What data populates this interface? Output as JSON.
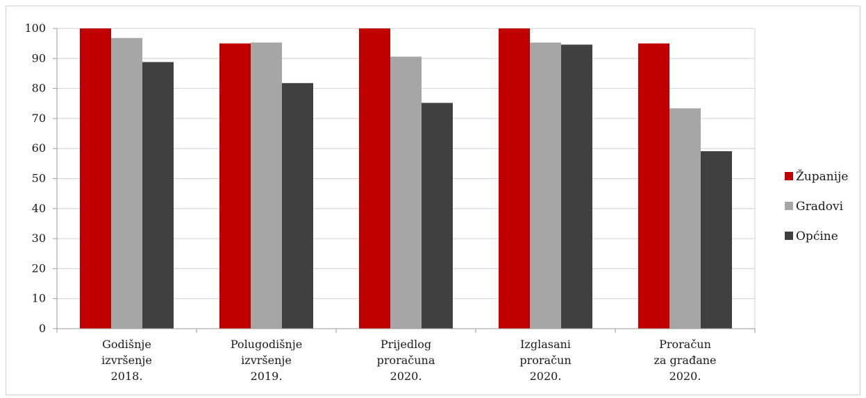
{
  "chart_data": {
    "type": "bar",
    "categories": [
      [
        "Godišnje",
        "izvršenje",
        "2018."
      ],
      [
        "Polugodišnje",
        "izvršenje",
        "2019."
      ],
      [
        "Prijedlog",
        "proračuna",
        "2020."
      ],
      [
        "Izglasani",
        "proračun",
        "2020."
      ],
      [
        "Proračun",
        "za građane",
        "2020."
      ]
    ],
    "series": [
      {
        "name": "Županije",
        "color": "#c00000",
        "values": [
          100,
          95,
          100,
          100,
          95
        ]
      },
      {
        "name": "Gradovi",
        "color": "#a6a6a6",
        "values": [
          96.8,
          95.3,
          90.6,
          95.3,
          73.4
        ]
      },
      {
        "name": "Općine",
        "color": "#404040",
        "values": [
          88.8,
          81.8,
          75.2,
          94.6,
          59.1
        ]
      }
    ],
    "ylim": [
      0,
      100
    ],
    "yticks": [
      "0",
      "10",
      "20",
      "30",
      "40",
      "50",
      "60",
      "70",
      "80",
      "90",
      "100"
    ],
    "grid": true,
    "legend_position": "right"
  }
}
